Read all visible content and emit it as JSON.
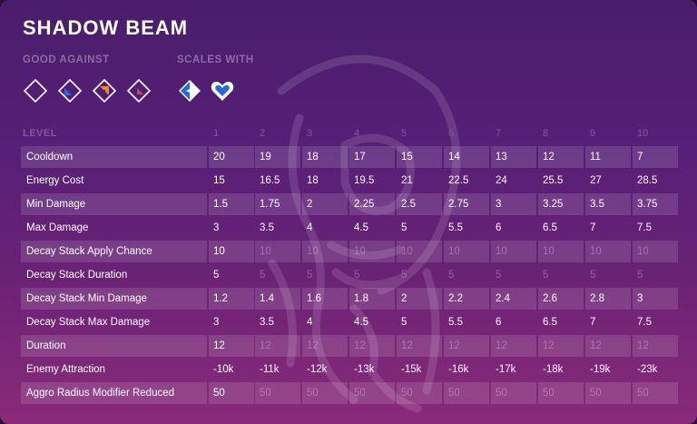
{
  "title": "SHADOW BEAM",
  "good_against": {
    "label": "GOOD AGAINST",
    "icons": [
      "diamond-outline-icon",
      "diamond-blue-corner-icon",
      "diamond-orange-corner-icon",
      "diamond-red-corner-icon"
    ]
  },
  "scales_with": {
    "label": "SCALES WITH",
    "icons": [
      "blue-shield-shape-icon",
      "heart-icon"
    ]
  },
  "colors": {
    "accent_blue": "#1d6fe0",
    "accent_orange": "#f08a10",
    "accent_red": "#c84a52",
    "text_white": "#ffffff"
  },
  "table": {
    "level_label": "LEVEL",
    "levels": [
      "1",
      "2",
      "3",
      "4",
      "5",
      "6",
      "7",
      "8",
      "9",
      "10"
    ],
    "rows": [
      {
        "name": "Cooldown",
        "values": [
          "20",
          "19",
          "18",
          "17",
          "15",
          "14",
          "13",
          "12",
          "11",
          "7"
        ],
        "dim_after_first": false
      },
      {
        "name": "Energy Cost",
        "values": [
          "15",
          "16.5",
          "18",
          "19.5",
          "21",
          "22.5",
          "24",
          "25.5",
          "27",
          "28.5"
        ],
        "dim_after_first": false
      },
      {
        "name": "Min Damage",
        "values": [
          "1.5",
          "1.75",
          "2",
          "2.25",
          "2.5",
          "2.75",
          "3",
          "3.25",
          "3.5",
          "3.75"
        ],
        "dim_after_first": false
      },
      {
        "name": "Max Damage",
        "values": [
          "3",
          "3.5",
          "4",
          "4.5",
          "5",
          "5.5",
          "6",
          "6.5",
          "7",
          "7.5"
        ],
        "dim_after_first": false
      },
      {
        "name": "Decay Stack Apply Chance",
        "values": [
          "10",
          "10",
          "10",
          "10",
          "10",
          "10",
          "10",
          "10",
          "10",
          "10"
        ],
        "dim_after_first": true
      },
      {
        "name": "Decay Stack Duration",
        "values": [
          "5",
          "5",
          "5",
          "5",
          "5",
          "5",
          "5",
          "5",
          "5",
          "5"
        ],
        "dim_after_first": true
      },
      {
        "name": "Decay Stack Min Damage",
        "values": [
          "1.2",
          "1.4",
          "1.6",
          "1.8",
          "2",
          "2.2",
          "2.4",
          "2.6",
          "2.8",
          "3"
        ],
        "dim_after_first": false
      },
      {
        "name": "Decay Stack Max Damage",
        "values": [
          "3",
          "3.5",
          "4",
          "4.5",
          "5",
          "5.5",
          "6",
          "6.5",
          "7",
          "7.5"
        ],
        "dim_after_first": false
      },
      {
        "name": "Duration",
        "values": [
          "12",
          "12",
          "12",
          "12",
          "12",
          "12",
          "12",
          "12",
          "12",
          "12"
        ],
        "dim_after_first": true
      },
      {
        "name": "Enemy Attraction",
        "values": [
          "-10k",
          "-11k",
          "-12k",
          "-13k",
          "-15k",
          "-16k",
          "-17k",
          "-18k",
          "-19k",
          "-23k"
        ],
        "dim_after_first": false
      },
      {
        "name": "Aggro Radius Modifier Reduced",
        "values": [
          "50",
          "50",
          "50",
          "50",
          "50",
          "50",
          "50",
          "50",
          "50",
          "50"
        ],
        "dim_after_first": true
      }
    ]
  }
}
